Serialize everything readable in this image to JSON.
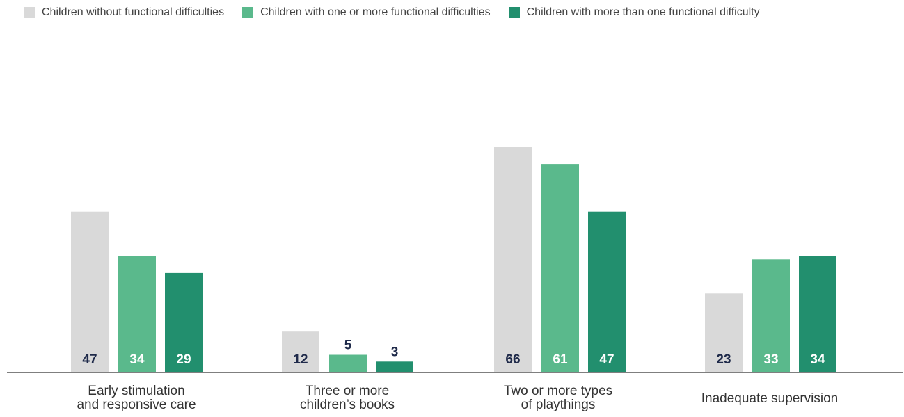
{
  "colors": {
    "series": [
      "#d9d9d9",
      "#5ab98c",
      "#228f6e"
    ],
    "label_inside": "#1f2a4a",
    "axis": "#333333"
  },
  "chart_data": {
    "type": "bar",
    "categories": [
      [
        "Early stimulation",
        "and responsive care"
      ],
      [
        "Three or more",
        "children’s books"
      ],
      [
        "Two or more types",
        "of playthings"
      ],
      [
        "Inadequate supervision"
      ]
    ],
    "series": [
      {
        "name": "Children without functional difficulties",
        "values": [
          47,
          12,
          66,
          23
        ]
      },
      {
        "name": "Children with one or more functional difficulties",
        "values": [
          34,
          5,
          61,
          33
        ]
      },
      {
        "name": "Children with more than one functional difficulty",
        "values": [
          29,
          3,
          47,
          34
        ]
      }
    ],
    "ylim": [
      0,
      70
    ],
    "grid": false,
    "legend_position": "top-left"
  }
}
